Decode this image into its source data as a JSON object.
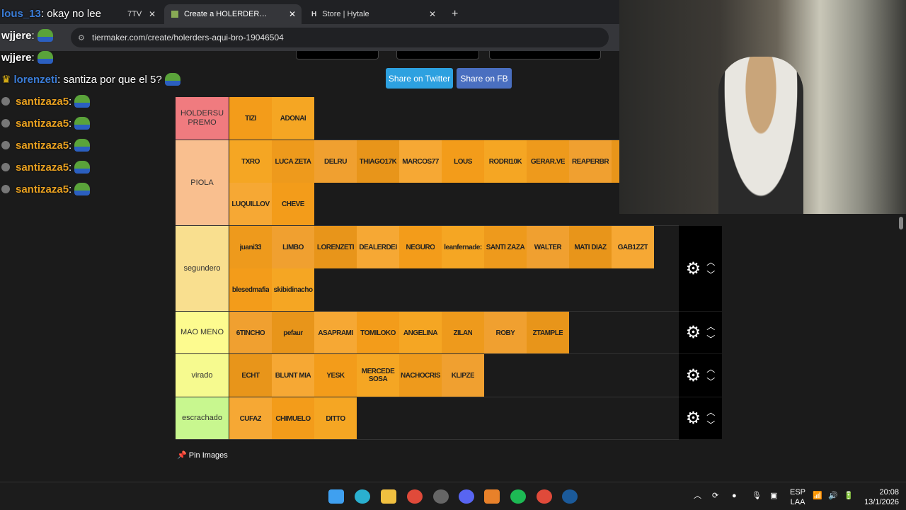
{
  "browser": {
    "tabs": [
      {
        "label": "7TV",
        "active": false
      },
      {
        "label": "Create a HOLERDERS AQUI BRO",
        "active": true
      },
      {
        "label": "Store | Hytale",
        "active": false
      }
    ],
    "url": "tiermaker.com/create/holerders-aqui-bro-19046504"
  },
  "chat": [
    {
      "user": "lous_13",
      "text": ": okay no lee",
      "color": "#3b7dd8"
    },
    {
      "user": "wjjere",
      "text": ":",
      "color": "#fff"
    },
    {
      "user": "wjjere",
      "text": ":",
      "color": "#fff"
    },
    {
      "user": "lorenzeti",
      "text": ": santiza por que el 5?",
      "color": "#3b7dd8"
    },
    {
      "user": "santizaza5",
      "text": ":",
      "color": "#e8a020"
    },
    {
      "user": "santizaza5",
      "text": ":",
      "color": "#e8a020"
    },
    {
      "user": "santizaza5",
      "text": ":",
      "color": "#e8a020"
    },
    {
      "user": "santizaza5",
      "text": ":",
      "color": "#e8a020"
    },
    {
      "user": "santizaza5",
      "text": ":",
      "color": "#e8a020"
    }
  ],
  "share": {
    "twitter": "Share on Twitter",
    "fb": "Share on FB"
  },
  "tiers": [
    {
      "label": "HOLDERSU PREMO",
      "color": "#f07b7f",
      "items": [
        "TIZI",
        "ADONAI"
      ]
    },
    {
      "label": "PIOLA",
      "color": "#f9bf8f",
      "items": [
        "TXRO",
        "LUCA ZETA",
        "DELRU",
        "THIAGO17K",
        "MARCOS77",
        "LOUS",
        "RODRI10K",
        "GERAR.VE",
        "REAPERBR",
        "T",
        "LUQUILLOV",
        "CHEVE"
      ]
    },
    {
      "label": "segundero",
      "color": "#f9df8f",
      "items": [
        "juani33",
        "LIMBO",
        "LORENZETI",
        "DEALERDEI",
        "NEGURO",
        "leanfernade:",
        "SANTI ZAZA",
        "WALTER",
        "MATI DIAZ",
        "GAB1ZZT",
        "blesedmafia",
        "skibidinacho"
      ]
    },
    {
      "label": "MAO MENO",
      "color": "#fdfb8f",
      "items": [
        "6TINCHO",
        "pefaur",
        "ASAPRAMI",
        "TOMILOKO",
        "ANGELINA",
        "ZILAN",
        "ROBY",
        "ZTAMPLE"
      ]
    },
    {
      "label": "virado",
      "color": "#f6fa8f",
      "items": [
        "ECHT",
        "BLUNT MIA",
        "YESK",
        "MERCEDE SOSA",
        "NACHOCRIS",
        "KLIPZE"
      ]
    },
    {
      "label": "escrachado",
      "color": "#c8f78f",
      "items": [
        "CUFAZ",
        "CHIMUELO",
        "DITTO"
      ]
    }
  ],
  "pin_images": "Pin Images",
  "tray": {
    "lang1": "ESP",
    "lang2": "LAA",
    "time": "20:08",
    "date": "13/1/2026"
  }
}
